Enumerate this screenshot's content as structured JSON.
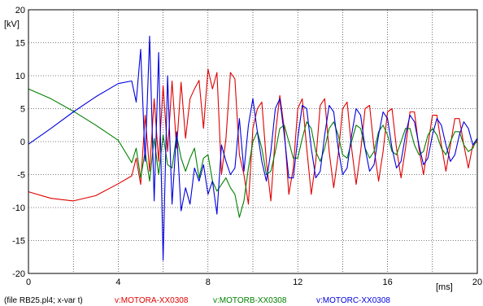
{
  "chart_data": {
    "type": "line",
    "xlabel": "[ms]",
    "ylabel": "[kV]",
    "xlim": [
      0,
      20
    ],
    "ylim": [
      -20,
      20
    ],
    "xticks": [
      0,
      4,
      8,
      12,
      16,
      20
    ],
    "yticks": [
      -20,
      -15,
      -10,
      -5,
      0,
      5,
      10,
      15,
      20
    ],
    "grid": true,
    "source_label": "(file RB25.pl4; x-var t)",
    "series": [
      {
        "name": "v:MOTORA-XX0308",
        "color": "#e00000",
        "x": [
          0,
          1,
          2,
          3,
          4,
          4.6,
          4.8,
          5.0,
          5.2,
          5.4,
          5.6,
          5.8,
          6.0,
          6.2,
          6.4,
          6.6,
          6.8,
          7.0,
          7.2,
          7.4,
          7.6,
          7.8,
          8.0,
          8.2,
          8.4,
          8.6,
          8.8,
          9.0,
          9.2,
          9.4,
          9.6,
          9.8,
          10.0,
          10.2,
          10.4,
          10.6,
          10.8,
          11.0,
          11.2,
          11.4,
          11.6,
          11.8,
          12.0,
          12.2,
          12.4,
          12.6,
          12.8,
          13.0,
          13.2,
          13.4,
          13.6,
          13.8,
          14.0,
          14.2,
          14.4,
          14.6,
          14.8,
          15.0,
          15.2,
          15.4,
          15.6,
          15.8,
          16.0,
          16.2,
          16.4,
          16.6,
          16.8,
          17.0,
          17.2,
          17.4,
          17.6,
          17.8,
          18.0,
          18.2,
          18.4,
          18.6,
          18.8,
          19.0,
          19.2,
          19.4,
          19.6,
          19.8,
          20.0
        ],
        "values": [
          -7.6,
          -8.6,
          -9.0,
          -8.2,
          -6.4,
          -5.2,
          -2.5,
          -6.5,
          4.0,
          -4.5,
          6.5,
          -3.0,
          8.5,
          -1.5,
          9.2,
          -1.0,
          9.0,
          0.5,
          6.5,
          8.0,
          9.3,
          2.0,
          11.0,
          8.0,
          10.5,
          -5.0,
          0.5,
          10.5,
          9.5,
          -2.0,
          -5.0,
          -9.5,
          2.0,
          5.0,
          6.0,
          -3.0,
          -9.0,
          1.0,
          7.0,
          2.0,
          -8.0,
          -4.0,
          5.0,
          6.5,
          -1.0,
          -8.0,
          -3.0,
          5.5,
          6.5,
          -1.5,
          -7.0,
          -2.0,
          5.0,
          6.0,
          -1.0,
          -6.5,
          -1.5,
          5.0,
          5.5,
          -1.0,
          -6.0,
          -1.5,
          4.5,
          5.0,
          -1.0,
          -5.5,
          -1.0,
          4.5,
          4.5,
          -1.0,
          -5.0,
          -0.5,
          4.0,
          4.0,
          -0.5,
          -4.5,
          -0.5,
          3.5,
          3.5,
          -0.5,
          -4.0,
          -0.5,
          0.0
        ]
      },
      {
        "name": "v:MOTORB-XX0308",
        "color": "#008000",
        "x": [
          0,
          1,
          2,
          3,
          4,
          4.6,
          4.8,
          5.0,
          5.2,
          5.4,
          5.6,
          5.8,
          6.0,
          6.2,
          6.4,
          6.6,
          6.8,
          7.0,
          7.2,
          7.4,
          7.6,
          7.8,
          8.0,
          8.2,
          8.4,
          8.6,
          8.8,
          9.0,
          9.2,
          9.4,
          9.6,
          9.8,
          10.0,
          10.2,
          10.4,
          10.6,
          10.8,
          11.0,
          11.2,
          11.4,
          11.6,
          11.8,
          12.0,
          12.2,
          12.4,
          12.6,
          12.8,
          13.0,
          13.2,
          13.4,
          13.6,
          13.8,
          14.0,
          14.2,
          14.4,
          14.6,
          14.8,
          15.0,
          15.2,
          15.4,
          15.6,
          15.8,
          16.0,
          16.2,
          16.4,
          16.6,
          16.8,
          17.0,
          17.2,
          17.4,
          17.6,
          17.8,
          18.0,
          18.2,
          18.4,
          18.6,
          18.8,
          19.0,
          19.2,
          19.4,
          19.6,
          19.8,
          20.0
        ],
        "values": [
          8.0,
          6.5,
          4.6,
          2.5,
          0.2,
          -3.2,
          -1.0,
          -5.5,
          -1.5,
          -6.0,
          0.5,
          -5.0,
          1.0,
          -3.5,
          -4.0,
          1.0,
          -2.5,
          -4.5,
          -2.5,
          -1.0,
          -5.5,
          -2.5,
          -2.0,
          -6.0,
          -7.5,
          -6.5,
          -5.5,
          -7.0,
          -8.0,
          -11.5,
          -9.0,
          -4.0,
          0.0,
          1.5,
          -1.0,
          -5.0,
          -4.5,
          -1.5,
          2.0,
          2.5,
          0.0,
          -2.5,
          -2.5,
          0.5,
          3.0,
          2.0,
          -1.5,
          -3.0,
          -1.0,
          2.0,
          3.0,
          1.0,
          -2.0,
          -2.5,
          0.0,
          2.5,
          2.0,
          -1.0,
          -2.5,
          -1.5,
          1.5,
          2.5,
          1.0,
          -1.5,
          -2.0,
          0.0,
          2.0,
          2.0,
          -0.5,
          -2.0,
          -1.5,
          1.0,
          2.0,
          1.0,
          -1.0,
          -2.0,
          0.0,
          1.5,
          1.5,
          -0.5,
          -1.5,
          -1.0,
          0.5
        ]
      },
      {
        "name": "v:MOTORC-XX0308",
        "color": "#0000e0",
        "x": [
          0,
          1,
          2,
          3,
          4,
          4.6,
          4.8,
          5.0,
          5.2,
          5.4,
          5.6,
          5.8,
          6.0,
          6.2,
          6.4,
          6.6,
          6.8,
          7.0,
          7.2,
          7.4,
          7.6,
          7.8,
          8.0,
          8.2,
          8.4,
          8.6,
          8.8,
          9.0,
          9.2,
          9.4,
          9.6,
          9.8,
          10.0,
          10.2,
          10.4,
          10.6,
          10.8,
          11.0,
          11.2,
          11.4,
          11.6,
          11.8,
          12.0,
          12.2,
          12.4,
          12.6,
          12.8,
          13.0,
          13.2,
          13.4,
          13.6,
          13.8,
          14.0,
          14.2,
          14.4,
          14.6,
          14.8,
          15.0,
          15.2,
          15.4,
          15.6,
          15.8,
          16.0,
          16.2,
          16.4,
          16.6,
          16.8,
          17.0,
          17.2,
          17.4,
          17.6,
          17.8,
          18.0,
          18.2,
          18.4,
          18.6,
          18.8,
          19.0,
          19.2,
          19.4,
          19.6,
          19.8,
          20.0
        ],
        "values": [
          -0.4,
          2.0,
          4.5,
          6.8,
          8.8,
          9.2,
          6.0,
          14.0,
          -3.0,
          16.0,
          -9.0,
          13.5,
          -18.0,
          10.0,
          -9.5,
          1.5,
          -10.5,
          -7.0,
          -9.5,
          -4.0,
          -6.0,
          -3.5,
          -8.0,
          -6.0,
          -11.0,
          -0.5,
          -3.0,
          -5.0,
          -4.0,
          3.5,
          -4.5,
          2.5,
          6.5,
          1.5,
          -3.0,
          -6.0,
          -1.5,
          5.0,
          6.5,
          1.0,
          -5.5,
          -5.5,
          0.5,
          5.5,
          5.0,
          -1.0,
          -5.5,
          -4.5,
          1.0,
          5.5,
          4.5,
          -1.0,
          -5.0,
          -4.0,
          1.0,
          5.0,
          4.0,
          -1.0,
          -4.5,
          -3.5,
          1.0,
          4.5,
          3.5,
          -1.0,
          -4.0,
          -3.0,
          1.0,
          4.0,
          3.0,
          -0.5,
          -3.5,
          -2.5,
          1.0,
          3.5,
          2.5,
          -0.5,
          -3.0,
          -2.0,
          1.0,
          3.0,
          2.0,
          -0.5,
          0.5
        ]
      }
    ]
  }
}
